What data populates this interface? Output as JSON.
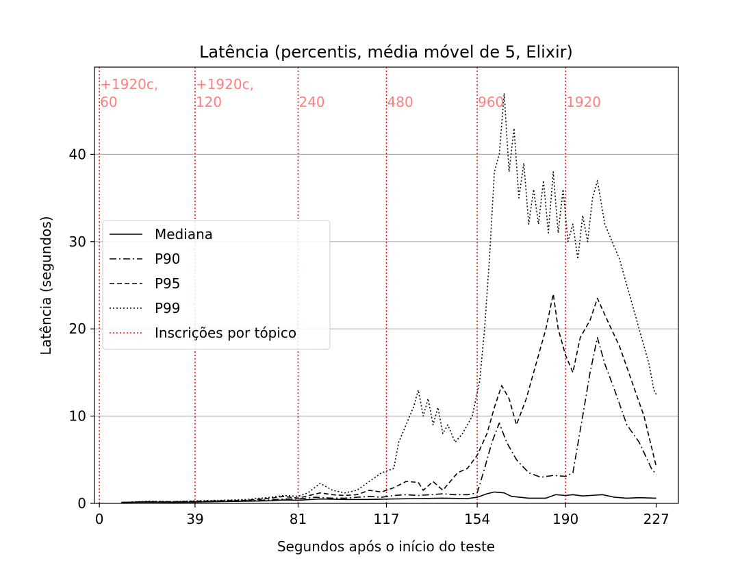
{
  "chart_data": {
    "type": "line",
    "title": "Latência (percentis, média móvel de 5, Elixir)",
    "xlabel": "Segundos após o início do teste",
    "ylabel": "Latência (segundos)",
    "xlim": [
      -2,
      236
    ],
    "ylim": [
      0,
      50
    ],
    "xticks": [
      0,
      39,
      81,
      117,
      154,
      190,
      227
    ],
    "yticks": [
      0,
      10,
      20,
      30,
      40
    ],
    "grid": "y",
    "legend_position": "center-left",
    "colors": {
      "series": "#000000",
      "marker": "#ff0000",
      "marker_label": "#ff7f7f",
      "grid": "#b0b0b0"
    },
    "series": [
      {
        "name": "Mediana",
        "style": "solid",
        "points": [
          [
            9,
            0.1
          ],
          [
            20,
            0.15
          ],
          [
            30,
            0.12
          ],
          [
            40,
            0.15
          ],
          [
            50,
            0.2
          ],
          [
            60,
            0.25
          ],
          [
            70,
            0.3
          ],
          [
            75,
            0.4
          ],
          [
            81,
            0.35
          ],
          [
            90,
            0.5
          ],
          [
            100,
            0.45
          ],
          [
            110,
            0.45
          ],
          [
            120,
            0.5
          ],
          [
            130,
            0.55
          ],
          [
            140,
            0.6
          ],
          [
            150,
            0.55
          ],
          [
            154,
            0.7
          ],
          [
            158,
            1.1
          ],
          [
            161,
            1.3
          ],
          [
            165,
            1.2
          ],
          [
            168,
            0.8
          ],
          [
            175,
            0.6
          ],
          [
            182,
            0.6
          ],
          [
            186,
            1.0
          ],
          [
            190,
            0.9
          ],
          [
            193,
            1.0
          ],
          [
            197,
            0.85
          ],
          [
            200,
            0.9
          ],
          [
            205,
            1.0
          ],
          [
            210,
            0.7
          ],
          [
            215,
            0.6
          ],
          [
            220,
            0.65
          ],
          [
            227,
            0.6
          ]
        ]
      },
      {
        "name": "P90",
        "style": "dashdot",
        "points": [
          [
            9,
            0.1
          ],
          [
            20,
            0.2
          ],
          [
            30,
            0.15
          ],
          [
            40,
            0.2
          ],
          [
            50,
            0.25
          ],
          [
            60,
            0.3
          ],
          [
            70,
            0.4
          ],
          [
            75,
            0.5
          ],
          [
            81,
            0.5
          ],
          [
            88,
            0.7
          ],
          [
            95,
            0.6
          ],
          [
            100,
            0.6
          ],
          [
            105,
            0.7
          ],
          [
            110,
            0.8
          ],
          [
            115,
            0.7
          ],
          [
            120,
            0.9
          ],
          [
            125,
            1.0
          ],
          [
            130,
            0.9
          ],
          [
            135,
            1.0
          ],
          [
            140,
            1.1
          ],
          [
            145,
            1.0
          ],
          [
            150,
            1.0
          ],
          [
            154,
            1.2
          ],
          [
            157,
            4.0
          ],
          [
            160,
            7.0
          ],
          [
            163,
            9.2
          ],
          [
            166,
            7.0
          ],
          [
            170,
            5.0
          ],
          [
            175,
            3.5
          ],
          [
            180,
            3.0
          ],
          [
            185,
            3.2
          ],
          [
            190,
            3.1
          ],
          [
            193,
            3.5
          ],
          [
            197,
            10.0
          ],
          [
            200,
            15.0
          ],
          [
            203,
            19.0
          ],
          [
            206,
            16.0
          ],
          [
            210,
            13.0
          ],
          [
            215,
            9.0
          ],
          [
            220,
            7.0
          ],
          [
            225,
            4.0
          ],
          [
            227,
            3.3
          ]
        ]
      },
      {
        "name": "P95",
        "style": "dashed",
        "points": [
          [
            9,
            0.1
          ],
          [
            20,
            0.2
          ],
          [
            30,
            0.2
          ],
          [
            40,
            0.25
          ],
          [
            50,
            0.3
          ],
          [
            60,
            0.35
          ],
          [
            70,
            0.6
          ],
          [
            75,
            0.8
          ],
          [
            81,
            0.6
          ],
          [
            90,
            1.2
          ],
          [
            95,
            1.0
          ],
          [
            100,
            0.9
          ],
          [
            105,
            1.0
          ],
          [
            110,
            1.5
          ],
          [
            115,
            1.3
          ],
          [
            120,
            1.8
          ],
          [
            125,
            2.5
          ],
          [
            130,
            2.4
          ],
          [
            132,
            1.5
          ],
          [
            136,
            2.5
          ],
          [
            140,
            1.5
          ],
          [
            143,
            2.5
          ],
          [
            146,
            3.5
          ],
          [
            150,
            4.0
          ],
          [
            154,
            5.5
          ],
          [
            158,
            8.0
          ],
          [
            161,
            11.0
          ],
          [
            164,
            13.5
          ],
          [
            167,
            12.0
          ],
          [
            170,
            9.0
          ],
          [
            174,
            12.0
          ],
          [
            178,
            16.0
          ],
          [
            182,
            20.0
          ],
          [
            185,
            24.0
          ],
          [
            187,
            20.0
          ],
          [
            190,
            17.0
          ],
          [
            193,
            15.0
          ],
          [
            196,
            19.0
          ],
          [
            200,
            21.0
          ],
          [
            203,
            23.5
          ],
          [
            207,
            21.0
          ],
          [
            212,
            18.0
          ],
          [
            217,
            14.0
          ],
          [
            222,
            10.0
          ],
          [
            227,
            4.2
          ]
        ]
      },
      {
        "name": "P99",
        "style": "dotted",
        "points": [
          [
            9,
            0.1
          ],
          [
            20,
            0.25
          ],
          [
            30,
            0.2
          ],
          [
            40,
            0.3
          ],
          [
            50,
            0.35
          ],
          [
            60,
            0.45
          ],
          [
            70,
            0.7
          ],
          [
            75,
            0.9
          ],
          [
            81,
            0.8
          ],
          [
            85,
            1.2
          ],
          [
            90,
            2.3
          ],
          [
            95,
            1.5
          ],
          [
            100,
            1.2
          ],
          [
            105,
            1.5
          ],
          [
            110,
            2.5
          ],
          [
            115,
            3.5
          ],
          [
            120,
            4.0
          ],
          [
            122,
            7.0
          ],
          [
            125,
            9.0
          ],
          [
            128,
            11.0
          ],
          [
            130,
            13.0
          ],
          [
            132,
            10.0
          ],
          [
            134,
            12.0
          ],
          [
            136,
            9.0
          ],
          [
            138,
            11.0
          ],
          [
            140,
            8.0
          ],
          [
            142,
            9.0
          ],
          [
            145,
            7.0
          ],
          [
            148,
            8.0
          ],
          [
            152,
            10.0
          ],
          [
            155,
            14.0
          ],
          [
            157,
            20.0
          ],
          [
            159,
            28.0
          ],
          [
            161,
            38.0
          ],
          [
            163,
            40.0
          ],
          [
            165,
            47.0
          ],
          [
            167,
            38.0
          ],
          [
            169,
            43.0
          ],
          [
            171,
            35.0
          ],
          [
            173,
            39.0
          ],
          [
            175,
            32.0
          ],
          [
            177,
            36.0
          ],
          [
            179,
            32.0
          ],
          [
            181,
            37.0
          ],
          [
            183,
            31.0
          ],
          [
            185,
            38.0
          ],
          [
            187,
            31.0
          ],
          [
            189,
            36.0
          ],
          [
            191,
            30.0
          ],
          [
            193,
            32.0
          ],
          [
            195,
            28.0
          ],
          [
            197,
            33.0
          ],
          [
            199,
            30.0
          ],
          [
            201,
            35.0
          ],
          [
            203,
            37.0
          ],
          [
            206,
            32.0
          ],
          [
            209,
            30.0
          ],
          [
            212,
            28.0
          ],
          [
            215,
            25.0
          ],
          [
            218,
            22.0
          ],
          [
            221,
            19.0
          ],
          [
            224,
            16.0
          ],
          [
            226,
            13.0
          ],
          [
            227,
            12.5
          ]
        ]
      }
    ],
    "markers": {
      "name": "Inscrições por tópico",
      "style": "dotted",
      "lines": [
        {
          "x": 0,
          "label_lines": [
            "+1920c,",
            "60"
          ]
        },
        {
          "x": 39,
          "label_lines": [
            "+1920c,",
            "120"
          ]
        },
        {
          "x": 81,
          "label_lines": [
            "240"
          ]
        },
        {
          "x": 117,
          "label_lines": [
            "480"
          ]
        },
        {
          "x": 154,
          "label_lines": [
            "960"
          ]
        },
        {
          "x": 190,
          "label_lines": [
            "1920"
          ]
        }
      ]
    }
  }
}
